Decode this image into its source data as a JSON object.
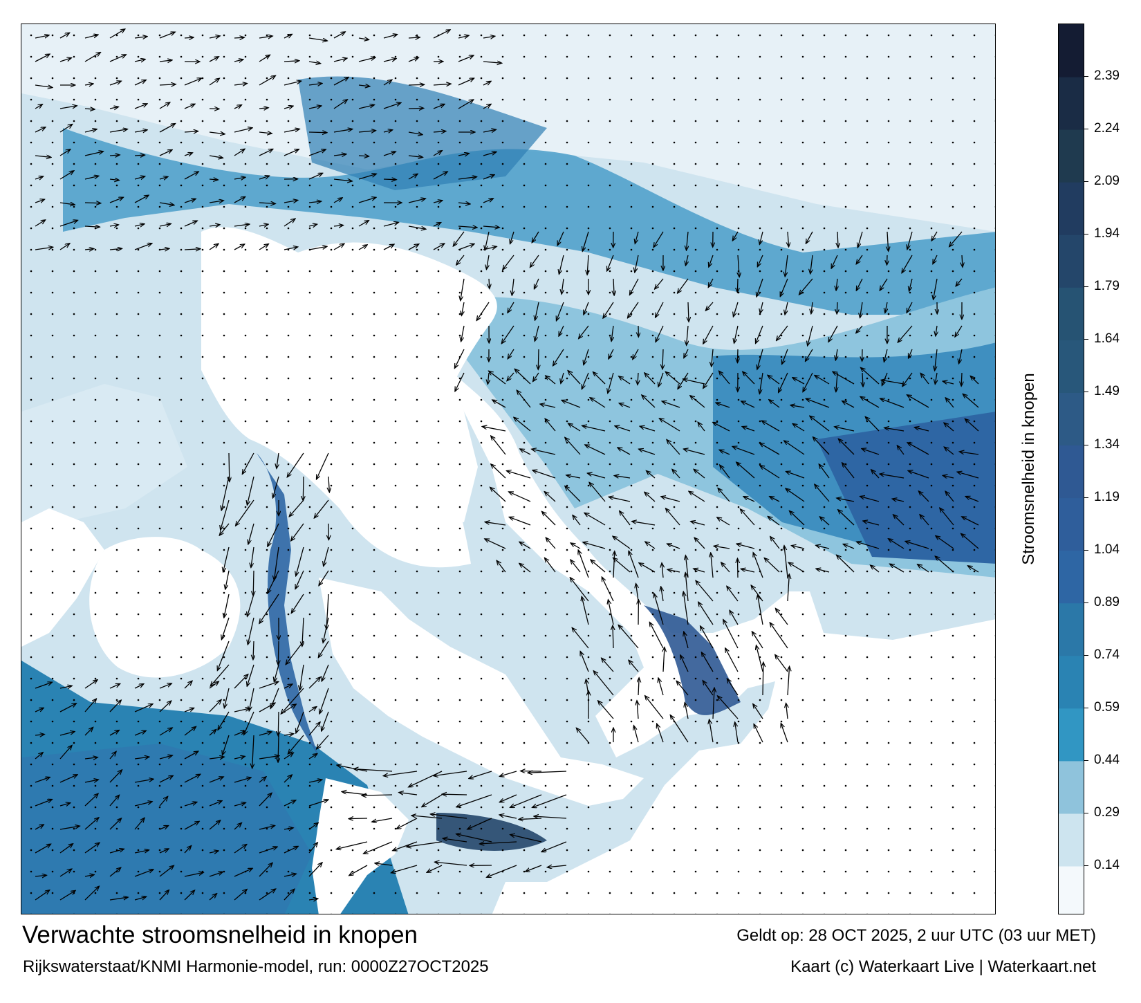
{
  "title": "Verwachte stroomsnelheid in knopen",
  "subtitle": "Rijkswaterstaat/KNMI Harmonie-model, run: 0000Z27OCT2025",
  "valid_time": "Geldt op: 28 OCT 2025, 2 uur UTC (03 uur MET)",
  "credit": "Kaart (c) Waterkaart Live | Waterkaart.net",
  "legend": {
    "title": "Stroomsnelheid in knopen",
    "ticks": [
      "2.39",
      "2.24",
      "2.09",
      "1.94",
      "1.79",
      "1.64",
      "1.49",
      "1.34",
      "1.19",
      "1.04",
      "0.89",
      "0.74",
      "0.59",
      "0.44",
      "0.29",
      "0.14"
    ],
    "tick_values": [
      2.39,
      2.24,
      2.09,
      1.94,
      1.79,
      1.64,
      1.49,
      1.34,
      1.19,
      1.04,
      0.89,
      0.74,
      0.59,
      0.44,
      0.29,
      0.14
    ],
    "range": [
      0,
      2.54
    ],
    "bands": [
      {
        "from": 0.0,
        "to": 0.14,
        "color": "#f4f9fc"
      },
      {
        "from": 0.14,
        "to": 0.29,
        "color": "#cde4ef"
      },
      {
        "from": 0.29,
        "to": 0.44,
        "color": "#8fc3dc"
      },
      {
        "from": 0.44,
        "to": 0.59,
        "color": "#3196c3"
      },
      {
        "from": 0.59,
        "to": 0.74,
        "color": "#2a83b3"
      },
      {
        "from": 0.74,
        "to": 0.89,
        "color": "#2b78a8"
      },
      {
        "from": 0.89,
        "to": 1.04,
        "color": "#2e66a4"
      },
      {
        "from": 1.04,
        "to": 1.19,
        "color": "#2f5e9b"
      },
      {
        "from": 1.19,
        "to": 1.34,
        "color": "#2f5993"
      },
      {
        "from": 1.34,
        "to": 1.49,
        "color": "#2d5a86"
      },
      {
        "from": 1.49,
        "to": 1.64,
        "color": "#28577a"
      },
      {
        "from": 1.64,
        "to": 1.79,
        "color": "#265373"
      },
      {
        "from": 1.79,
        "to": 1.94,
        "color": "#24466a"
      },
      {
        "from": 1.94,
        "to": 2.09,
        "color": "#213c60"
      },
      {
        "from": 2.09,
        "to": 2.24,
        "color": "#1f3a4f"
      },
      {
        "from": 2.24,
        "to": 2.39,
        "color": "#1a2c45"
      },
      {
        "from": 2.39,
        "to": 2.54,
        "color": "#141c33"
      }
    ]
  },
  "map": {
    "land_color": "#ffffff",
    "grid_dots_color": "#000000",
    "arrow_color": "#000000"
  }
}
